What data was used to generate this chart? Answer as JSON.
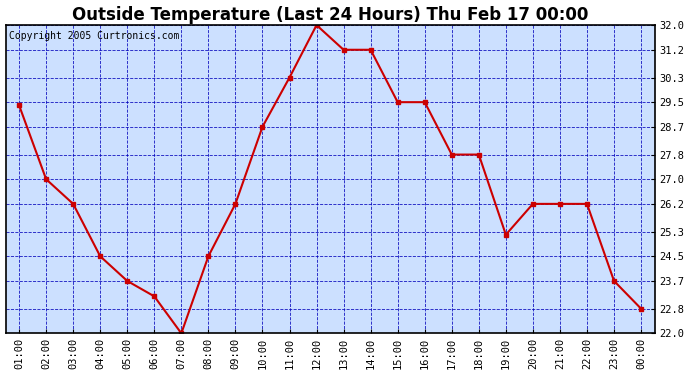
{
  "title": "Outside Temperature (Last 24 Hours) Thu Feb 17 00:00",
  "copyright": "Copyright 2005 Curtronics.com",
  "x_labels": [
    "01:00",
    "02:00",
    "03:00",
    "04:00",
    "05:00",
    "06:00",
    "07:00",
    "08:00",
    "09:00",
    "10:00",
    "11:00",
    "12:00",
    "13:00",
    "14:00",
    "15:00",
    "16:00",
    "17:00",
    "18:00",
    "19:00",
    "20:00",
    "21:00",
    "22:00",
    "23:00",
    "00:00"
  ],
  "y_values": [
    29.4,
    27.0,
    26.2,
    24.5,
    23.7,
    23.2,
    22.0,
    24.5,
    26.2,
    28.7,
    30.3,
    32.0,
    31.2,
    31.2,
    29.5,
    29.5,
    27.8,
    27.8,
    25.2,
    26.2,
    26.2,
    26.2,
    23.7,
    22.8
  ],
  "line_color": "#cc0000",
  "marker_color": "#cc0000",
  "fig_bg_color": "#ffffff",
  "plot_bg_color": "#cce0ff",
  "grid_color": "#0000bb",
  "border_color": "#000000",
  "title_fontsize": 12,
  "tick_fontsize": 7.5,
  "copyright_fontsize": 7,
  "y_min": 22.0,
  "y_max": 32.0,
  "y_ticks": [
    22.0,
    22.8,
    23.7,
    24.5,
    25.3,
    26.2,
    27.0,
    27.8,
    28.7,
    29.5,
    30.3,
    31.2,
    32.0
  ]
}
